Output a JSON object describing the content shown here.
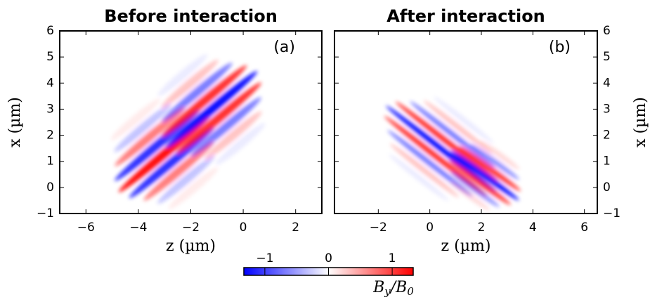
{
  "chart_data": [
    {
      "type": "heatmap",
      "title": "Before interaction",
      "annotation": "(a)",
      "xlabel": "z (µm)",
      "ylabel": "x (µm)",
      "xlim": [
        -7,
        3
      ],
      "ylim": [
        -1,
        6
      ],
      "xticks": [
        {
          "value": -6,
          "label": "−6"
        },
        {
          "value": -4,
          "label": "−4"
        },
        {
          "value": -2,
          "label": "−2"
        },
        0,
        2
      ],
      "yticks": [
        {
          "value": -1,
          "label": "−1"
        },
        0,
        1,
        2,
        3,
        4,
        5,
        6
      ],
      "yaxis_position": "left"
    },
    {
      "type": "heatmap",
      "title": "After interaction",
      "annotation": "(b)",
      "xlabel": "z (µm)",
      "ylabel": "x (µm)",
      "xlim": [
        -3.7,
        6.5
      ],
      "ylim": [
        -1,
        6
      ],
      "xticks": [
        {
          "value": -2,
          "label": "−2"
        },
        0,
        2,
        4,
        6
      ],
      "yticks": [
        {
          "value": -1,
          "label": "−1"
        },
        0,
        1,
        2,
        3,
        4,
        5,
        6
      ],
      "yaxis_position": "right"
    }
  ],
  "colorbar": {
    "label": [
      "B",
      "y",
      "/B",
      "0"
    ],
    "lim": [
      -1.33,
      1.33
    ],
    "ticks": [
      {
        "value": -1,
        "label": "−1"
      },
      0,
      1
    ],
    "colormap": [
      "#0000ff",
      "#ffffff",
      "#ff0000"
    ]
  }
}
